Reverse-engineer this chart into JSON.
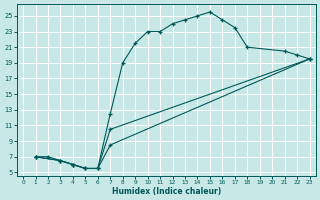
{
  "xlabel": "Humidex (Indice chaleur)",
  "bg_color": "#c8e8e8",
  "line_color": "#005858",
  "grid_color": "#ffffff",
  "xlim": [
    -0.5,
    23.5
  ],
  "ylim": [
    4.5,
    26.5
  ],
  "xticks": [
    0,
    1,
    2,
    3,
    4,
    5,
    6,
    7,
    8,
    9,
    10,
    11,
    12,
    13,
    14,
    15,
    16,
    17,
    18,
    19,
    20,
    21,
    22,
    23
  ],
  "yticks": [
    5,
    7,
    9,
    11,
    13,
    15,
    17,
    19,
    21,
    23,
    25
  ],
  "curve_x": [
    1,
    2,
    3,
    4,
    5,
    6,
    7,
    8,
    9,
    10,
    11,
    12,
    13,
    14,
    15,
    16,
    17,
    18,
    21,
    22,
    23
  ],
  "curve_y": [
    7,
    7,
    6.5,
    6,
    5.5,
    5.5,
    12.5,
    19,
    21.5,
    23,
    23,
    24,
    24.5,
    25,
    25.5,
    24.5,
    23.5,
    21,
    20.5,
    20,
    19.5
  ],
  "line_a_x": [
    1,
    3,
    4,
    5,
    6,
    7,
    23
  ],
  "line_a_y": [
    7,
    6.5,
    6,
    5.5,
    5.5,
    8.5,
    19.5
  ],
  "line_b_x": [
    1,
    3,
    4,
    5,
    6,
    7,
    23
  ],
  "line_b_y": [
    7,
    6.5,
    6,
    5.5,
    5.5,
    10.5,
    19.5
  ]
}
